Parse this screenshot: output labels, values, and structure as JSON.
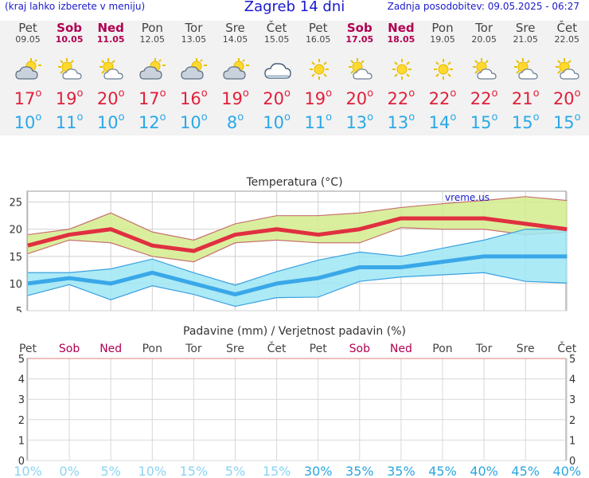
{
  "header": {
    "menu_hint": "(kraj lahko izberete v meniju)",
    "title": "Zagreb 14 dni",
    "last_update": "Zadnja posodobitev: 09.05.2025 - 06:27"
  },
  "days": [
    {
      "name": "Pet",
      "date": "09.05",
      "weekend": false,
      "icon": "partly-cloudy-icon",
      "max": "17",
      "min": "10"
    },
    {
      "name": "Sob",
      "date": "10.05",
      "weekend": true,
      "icon": "sun-cloud-icon",
      "max": "19",
      "min": "11"
    },
    {
      "name": "Ned",
      "date": "11.05",
      "weekend": true,
      "icon": "sun-cloud-icon",
      "max": "20",
      "min": "10"
    },
    {
      "name": "Pon",
      "date": "12.05",
      "weekend": false,
      "icon": "partly-cloudy-icon",
      "max": "17",
      "min": "12"
    },
    {
      "name": "Tor",
      "date": "13.05",
      "weekend": false,
      "icon": "partly-cloudy-icon",
      "max": "16",
      "min": "10"
    },
    {
      "name": "Sre",
      "date": "14.05",
      "weekend": false,
      "icon": "partly-cloudy-icon",
      "max": "19",
      "min": "8"
    },
    {
      "name": "Čet",
      "date": "15.05",
      "weekend": false,
      "icon": "cloud-icon",
      "max": "20",
      "min": "10"
    },
    {
      "name": "Pet",
      "date": "16.05",
      "weekend": false,
      "icon": "sun-icon",
      "max": "19",
      "min": "11"
    },
    {
      "name": "Sob",
      "date": "17.05",
      "weekend": true,
      "icon": "sun-cloud-icon",
      "max": "20",
      "min": "13"
    },
    {
      "name": "Ned",
      "date": "18.05",
      "weekend": true,
      "icon": "sun-icon",
      "max": "22",
      "min": "13"
    },
    {
      "name": "Pon",
      "date": "19.05",
      "weekend": false,
      "icon": "sun-icon",
      "max": "22",
      "min": "14"
    },
    {
      "name": "Tor",
      "date": "20.05",
      "weekend": false,
      "icon": "sun-cloud-icon",
      "max": "22",
      "min": "15"
    },
    {
      "name": "Sre",
      "date": "21.05",
      "weekend": false,
      "icon": "sun-cloud-icon",
      "max": "21",
      "min": "15"
    },
    {
      "name": "Čet",
      "date": "22.05",
      "weekend": false,
      "icon": "sun-cloud-icon",
      "max": "20",
      "min": "15"
    }
  ],
  "chart_data": [
    {
      "type": "line",
      "title": "Temperatura (°C)",
      "watermark": "vreme.us",
      "ylim": [
        5,
        27
      ],
      "yticks": [
        5,
        10,
        15,
        20,
        25
      ],
      "grid": true,
      "series": [
        {
          "values": [
            17,
            19,
            20,
            17,
            16,
            19,
            20,
            19,
            20,
            22,
            22,
            22,
            21,
            20
          ],
          "color": "#e03040"
        },
        {
          "values": [
            10,
            11,
            10,
            12,
            10,
            8,
            10,
            11,
            13,
            13,
            14,
            15,
            15,
            15
          ],
          "color": "#3aa8e8"
        }
      ],
      "max_range": {
        "upper": [
          19,
          20,
          23,
          19.5,
          18,
          21,
          22.5,
          22.5,
          23,
          24,
          24.7,
          25.3,
          26,
          25.3
        ],
        "lower": [
          15.5,
          18,
          17.5,
          15,
          14,
          17.5,
          18,
          17.5,
          17.5,
          20.3,
          20,
          20,
          19,
          19.5
        ],
        "color": "#d4ec8c"
      },
      "min_range": {
        "upper": [
          12,
          12,
          12.7,
          14.5,
          12,
          9.7,
          12.2,
          14.3,
          15.8,
          15,
          16.5,
          18,
          20,
          20
        ],
        "lower": [
          7.8,
          9.8,
          7,
          9.6,
          8,
          5.8,
          7.4,
          7.5,
          10.4,
          11.2,
          11.6,
          12,
          10.4,
          10.1
        ],
        "color": "#9de6f4"
      }
    },
    {
      "type": "bar",
      "title": "Padavine (mm) / Verjetnost padavin (%)",
      "categories": [
        "Pet",
        "Sob",
        "Ned",
        "Pon",
        "Tor",
        "Sre",
        "Čet",
        "Pet",
        "Sob",
        "Ned",
        "Pon",
        "Tor",
        "Sre",
        "Čet"
      ],
      "weekend": [
        false,
        true,
        true,
        false,
        false,
        false,
        false,
        false,
        true,
        true,
        false,
        false,
        false,
        false
      ],
      "values": [
        0,
        0,
        0,
        0,
        0,
        0,
        0,
        0,
        0,
        0,
        0,
        0,
        0,
        0
      ],
      "ylim": [
        0,
        5
      ],
      "yticks": [
        0,
        1,
        2,
        3,
        4,
        5
      ],
      "probability": [
        "10%",
        "0%",
        "5%",
        "10%",
        "15%",
        "5%",
        "15%",
        "30%",
        "35%",
        "35%",
        "45%",
        "40%",
        "45%",
        "40%"
      ],
      "probability_values": [
        10,
        0,
        5,
        10,
        15,
        5,
        15,
        30,
        35,
        35,
        45,
        40,
        45,
        40
      ]
    }
  ]
}
